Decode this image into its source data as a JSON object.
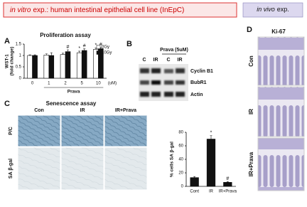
{
  "header": {
    "in_vitro_italic": "in vitro",
    "in_vitro_rest": "exp.: human intestinal epithelial cell line (InEpC)",
    "in_vivo_italic": "in vivo",
    "in_vivo_rest": "exp."
  },
  "panels": {
    "A": {
      "label": "A"
    },
    "B": {
      "label": "B",
      "treatment": "Prava (5uM)",
      "lanes": [
        "C",
        "IR",
        "C",
        "IR"
      ],
      "proteins": [
        "Cyclin B1",
        "BubR1",
        "Actin"
      ]
    },
    "C": {
      "label": "C",
      "title": "Senescence assay",
      "columns": [
        "Con",
        "IR",
        "IR+Prava"
      ],
      "rows": [
        "P/C",
        "SA β-gal"
      ]
    },
    "D": {
      "label": "D",
      "title": "Ki-67",
      "rows": [
        "Con",
        "IR",
        "IR+Prava"
      ]
    }
  },
  "chart_data": [
    {
      "type": "bar",
      "title": "Proliferation assay",
      "y_label": [
        "WST-1",
        "(fold change)"
      ],
      "x_label": "Prava",
      "x_unit": "(uM)",
      "categories": [
        "0",
        "1",
        "2",
        "5",
        "10"
      ],
      "series": [
        {
          "name": "0Gy",
          "color": "#ffffff",
          "values": [
            1.0,
            1.02,
            1.04,
            1.12,
            1.27
          ],
          "errors": [
            0.03,
            0.05,
            0.06,
            0.07,
            0.06
          ],
          "marks": [
            null,
            null,
            null,
            "*",
            "*"
          ]
        },
        {
          "name": "10Gy",
          "color": "#111111",
          "values": [
            1.0,
            1.0,
            1.17,
            1.22,
            1.3
          ],
          "errors": [
            0.03,
            0.12,
            0.08,
            0.07,
            0.05
          ],
          "marks": [
            null,
            null,
            "#",
            "#",
            "#"
          ]
        }
      ],
      "ylim": [
        0,
        1.5
      ],
      "yticks": [
        0,
        0.5,
        1,
        1.5
      ],
      "legend": "top-right"
    },
    {
      "type": "bar",
      "y_label": "% cells SA β-gal",
      "categories": [
        "Cont",
        "IR",
        "IR+Prava"
      ],
      "series": [
        {
          "color": "#111111",
          "values": [
            13,
            70,
            6
          ],
          "errors": [
            1.5,
            5,
            1
          ],
          "marks": [
            null,
            "*",
            "#"
          ]
        }
      ],
      "ylim": [
        0,
        80
      ],
      "yticks": [
        0,
        20,
        40,
        60,
        80
      ]
    }
  ]
}
